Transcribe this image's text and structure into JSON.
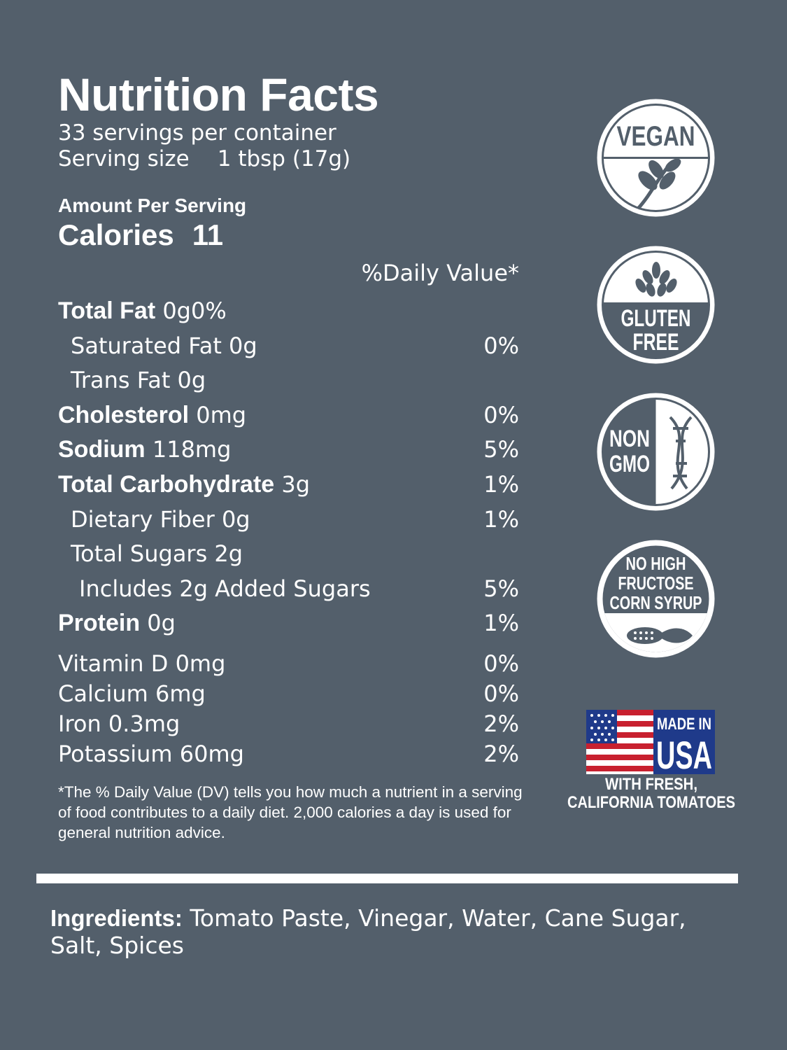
{
  "title": "Nutrition Facts",
  "servings_per_container": "33 servings per container",
  "serving_size_label": "Serving size",
  "serving_size_value": "1 tbsp (17g)",
  "amount_per_serving": "Amount Per Serving",
  "calories_label": "Calories",
  "calories_value": "11",
  "daily_value_header": "%Daily Value*",
  "nutrients": [
    {
      "bold": "Total Fat",
      "rest": " 0g0%",
      "pct": ""
    },
    {
      "bold": "",
      "rest": "Saturated Fat 0g",
      "pct": "0%"
    },
    {
      "bold": "",
      "rest": "Trans Fat 0g",
      "pct": ""
    },
    {
      "bold": "Cholesterol",
      "rest": " 0mg",
      "pct": "0%"
    },
    {
      "bold": "Sodium",
      "rest": " 118mg",
      "pct": "5%"
    },
    {
      "bold": "Total Carbohydrate",
      "rest": " 3g",
      "pct": "1%"
    },
    {
      "bold": "",
      "rest": "Dietary Fiber 0g",
      "pct": "1%"
    },
    {
      "bold": "",
      "rest": "Total Sugars 2g",
      "pct": ""
    },
    {
      "bold": "",
      "rest": "Includes 2g Added Sugars",
      "pct": "5%"
    },
    {
      "bold": "Protein",
      "rest": " 0g",
      "pct": "1%"
    }
  ],
  "vitamins": [
    {
      "label": "Vitamin D 0mg",
      "pct": "0%"
    },
    {
      "label": "Calcium 6mg",
      "pct": "0%"
    },
    {
      "label": "Iron 0.3mg",
      "pct": "2%"
    },
    {
      "label": "Potassium 60mg",
      "pct": "2%"
    }
  ],
  "footnote": "*The % Daily Value (DV) tells you how much a nutrient in a serving of food contributes to a daily diet. 2,000 calories a day is used for general nutrition advice.",
  "ingredients_label": "Ingredients:",
  "ingredients_text": " Tomato Paste, Vinegar, Water, Cane Sugar, Salt, Spices",
  "badges": {
    "vegan": "VEGAN",
    "gluten_free_1": "GLUTEN",
    "gluten_free_2": "FREE",
    "non_gmo_1": "NON",
    "non_gmo_2": "GMO",
    "hfcs_1": "NO HIGH",
    "hfcs_2": "FRUCTOSE",
    "hfcs_3": "CORN SYRUP",
    "usa_1": "MADE IN",
    "usa_2": "USA",
    "usa_3": "WITH FRESH,",
    "usa_4": "CALIFORNIA TOMATOES"
  },
  "colors": {
    "background": "#535f6b",
    "text": "#ffffff",
    "flag_red": "#c8202f",
    "flag_blue": "#1f3a8a"
  }
}
